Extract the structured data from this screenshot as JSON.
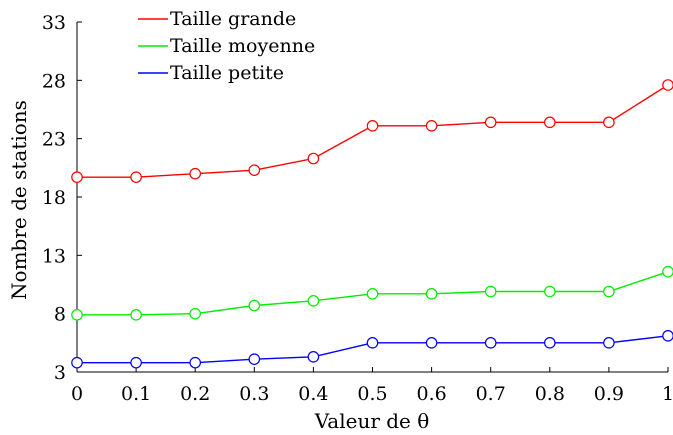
{
  "chart_data": {
    "type": "line",
    "xlabel": "Valeur de θ",
    "ylabel": "Nombre de stations",
    "xlim": [
      0,
      1
    ],
    "ylim": [
      3,
      33
    ],
    "x": [
      0,
      0.1,
      0.2,
      0.3,
      0.4,
      0.5,
      0.6,
      0.7,
      0.8,
      0.9,
      1
    ],
    "x_ticks": [
      "0",
      "0.1",
      "0.2",
      "0.3",
      "0.4",
      "0.5",
      "0.6",
      "0.7",
      "0.8",
      "0.9",
      "1"
    ],
    "y_ticks": [
      "3",
      "8",
      "13",
      "18",
      "23",
      "28",
      "33"
    ],
    "grid": false,
    "legend_position": "top-left",
    "marker": "open-circle",
    "series": [
      {
        "name": "Taille grande",
        "color": "#ff0000",
        "values": [
          19.7,
          19.7,
          20.0,
          20.3,
          21.3,
          24.1,
          24.1,
          24.4,
          24.4,
          24.4,
          27.6
        ]
      },
      {
        "name": "Taille moyenne",
        "color": "#00ee00",
        "values": [
          7.9,
          7.9,
          8.0,
          8.7,
          9.1,
          9.7,
          9.7,
          9.9,
          9.9,
          9.9,
          11.6
        ]
      },
      {
        "name": "Taille petite",
        "color": "#0000ff",
        "values": [
          3.8,
          3.8,
          3.8,
          4.1,
          4.3,
          5.5,
          5.5,
          5.5,
          5.5,
          5.5,
          6.1
        ]
      }
    ]
  }
}
